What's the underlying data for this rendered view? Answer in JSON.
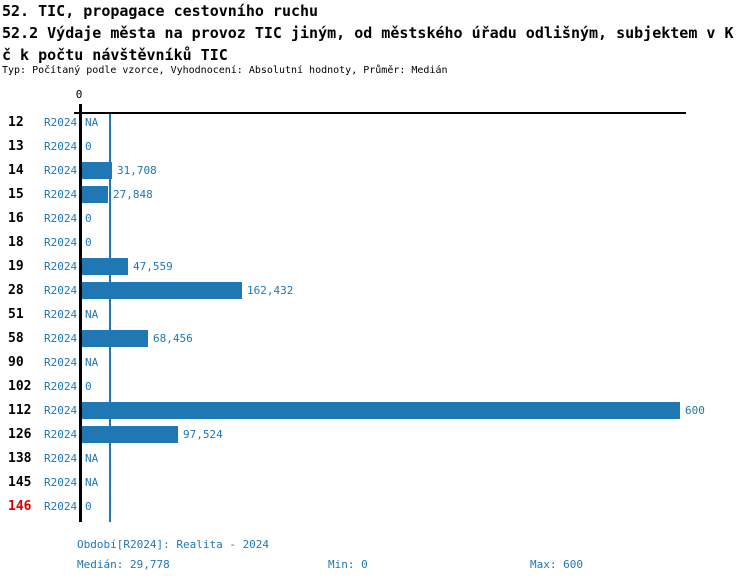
{
  "header": {
    "title_line1": "52. TIC, propagace cestovního ruchu",
    "title_line2": "52.2 Výdaje města na provoz TIC jiným, od městského úřadu odlišným, subjektem v K",
    "title_line3": "č k počtu návštěvníků TIC",
    "meta": "Typ: Počítaný podle vzorce, Vyhodnocení: Absolutní hodnoty, Průměr: Medián"
  },
  "colors": {
    "accent_blue": "#1f77b4",
    "bar_blue": "#1f77b4",
    "highlight_red": "#dd0000",
    "axis_black": "#000000",
    "background": "#ffffff"
  },
  "chart_data": {
    "type": "bar",
    "orientation": "horizontal",
    "title": "52.2 Výdaje města na provoz TIC jiným, od městského úřadu odlišným, subjektem v Kč k počtu návštěvníků TIC",
    "xlim": [
      0,
      600
    ],
    "axis_tick_labels": [
      "0"
    ],
    "grid": false,
    "legend_position": "none",
    "series_name": "R2024",
    "median_value": 29.778,
    "categories": [
      "12",
      "13",
      "14",
      "15",
      "16",
      "18",
      "19",
      "28",
      "51",
      "58",
      "90",
      "102",
      "112",
      "126",
      "138",
      "145",
      "146"
    ],
    "rows": [
      {
        "id": "12",
        "period": "R2024",
        "value": null,
        "display": "NA",
        "highlight": false
      },
      {
        "id": "13",
        "period": "R2024",
        "value": 0,
        "display": "0",
        "highlight": false
      },
      {
        "id": "14",
        "period": "R2024",
        "value": 31.708,
        "display": "31,708",
        "highlight": false
      },
      {
        "id": "15",
        "period": "R2024",
        "value": 27.848,
        "display": "27,848",
        "highlight": false
      },
      {
        "id": "16",
        "period": "R2024",
        "value": 0,
        "display": "0",
        "highlight": false
      },
      {
        "id": "18",
        "period": "R2024",
        "value": 0,
        "display": "0",
        "highlight": false
      },
      {
        "id": "19",
        "period": "R2024",
        "value": 47.559,
        "display": "47,559",
        "highlight": false
      },
      {
        "id": "28",
        "period": "R2024",
        "value": 162.432,
        "display": "162,432",
        "highlight": false
      },
      {
        "id": "51",
        "period": "R2024",
        "value": null,
        "display": "NA",
        "highlight": false
      },
      {
        "id": "58",
        "period": "R2024",
        "value": 68.456,
        "display": "68,456",
        "highlight": false
      },
      {
        "id": "90",
        "period": "R2024",
        "value": null,
        "display": "NA",
        "highlight": false
      },
      {
        "id": "102",
        "period": "R2024",
        "value": 0,
        "display": "0",
        "highlight": false
      },
      {
        "id": "112",
        "period": "R2024",
        "value": 600,
        "display": "600",
        "highlight": false
      },
      {
        "id": "126",
        "period": "R2024",
        "value": 97.524,
        "display": "97,524",
        "highlight": false
      },
      {
        "id": "138",
        "period": "R2024",
        "value": null,
        "display": "NA",
        "highlight": false
      },
      {
        "id": "145",
        "period": "R2024",
        "value": null,
        "display": "NA",
        "highlight": false
      },
      {
        "id": "146",
        "period": "R2024",
        "value": 0,
        "display": "0",
        "highlight": true
      }
    ]
  },
  "footer": {
    "period_info": "Období[R2024]: Realita - 2024",
    "median_label": "Medián: 29,778",
    "min_label": "Min: 0",
    "max_label": "Max: 600"
  }
}
